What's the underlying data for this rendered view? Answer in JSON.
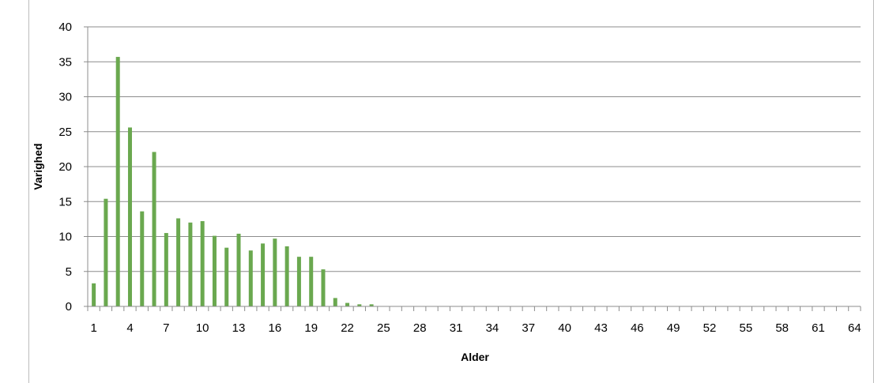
{
  "chart_data": {
    "type": "bar",
    "title": "",
    "xlabel": "Alder",
    "ylabel": "Varighed",
    "ylim": [
      0,
      40
    ],
    "yticks": [
      0,
      5,
      10,
      15,
      20,
      25,
      30,
      35,
      40
    ],
    "grid": true,
    "legend": "none",
    "bar_color": "#6aa84f",
    "categories": [
      1,
      2,
      3,
      4,
      5,
      6,
      7,
      8,
      9,
      10,
      11,
      12,
      13,
      14,
      15,
      16,
      17,
      18,
      19,
      20,
      21,
      22,
      23,
      24,
      25,
      26,
      27,
      28,
      29,
      30,
      31,
      32,
      33,
      34,
      35,
      36,
      37,
      38,
      39,
      40,
      41,
      42,
      43,
      44,
      45,
      46,
      47,
      48,
      49,
      50,
      51,
      52,
      53,
      54,
      55,
      56,
      57,
      58,
      59,
      60,
      61,
      62,
      63,
      64
    ],
    "tick_labels": [
      "1",
      "4",
      "7",
      "10",
      "13",
      "16",
      "19",
      "22",
      "25",
      "28",
      "31",
      "34",
      "37",
      "40",
      "43",
      "46",
      "49",
      "52",
      "55",
      "58",
      "61",
      "64"
    ],
    "values": [
      3.3,
      15.4,
      35.7,
      25.6,
      13.6,
      22.1,
      10.5,
      12.6,
      12.0,
      12.2,
      10.1,
      8.4,
      10.4,
      8.0,
      9.0,
      9.7,
      8.6,
      7.1,
      7.1,
      5.3,
      1.2,
      0.5,
      0.3,
      0.3,
      0,
      0,
      0,
      0,
      0,
      0,
      0,
      0,
      0,
      0,
      0,
      0,
      0,
      0,
      0,
      0,
      0,
      0,
      0,
      0,
      0,
      0,
      0,
      0,
      0,
      0,
      0,
      0,
      0,
      0,
      0,
      0,
      0,
      0,
      0,
      0,
      0,
      0,
      0,
      0
    ]
  }
}
